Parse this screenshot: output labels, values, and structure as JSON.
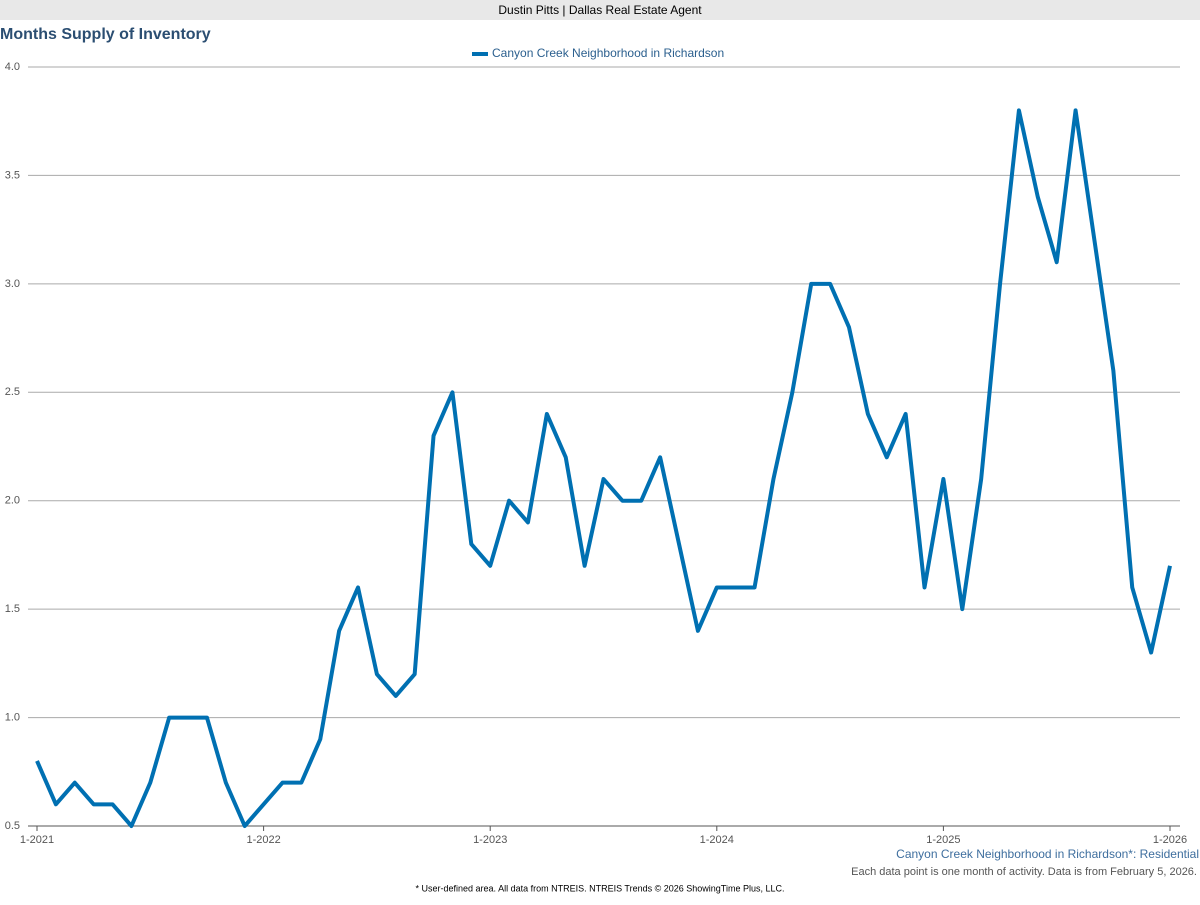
{
  "header": "Dustin Pitts | Dallas Real Estate Agent",
  "chart_data": {
    "type": "line",
    "title": "Months Supply of Inventory",
    "categories": [
      "1-2021",
      null,
      null,
      null,
      null,
      null,
      null,
      null,
      null,
      null,
      null,
      null,
      "1-2022",
      null,
      null,
      null,
      null,
      null,
      null,
      null,
      null,
      null,
      null,
      null,
      "1-2023",
      null,
      null,
      null,
      null,
      null,
      null,
      null,
      null,
      null,
      null,
      null,
      "1-2024",
      null,
      null,
      null,
      null,
      null,
      null,
      null,
      null,
      null,
      null,
      null,
      "1-2025",
      null,
      null,
      null,
      null,
      null,
      null,
      null,
      null,
      null,
      null,
      null,
      "1-2026"
    ],
    "series": [
      {
        "name": "Canyon Creek Neighborhood in Richardson",
        "color": "#0070b2",
        "values": [
          0.8,
          0.6,
          0.7,
          0.6,
          0.6,
          0.5,
          0.7,
          1.0,
          1.0,
          1.0,
          0.7,
          0.5,
          0.6,
          0.7,
          0.7,
          0.9,
          1.4,
          1.6,
          1.2,
          1.1,
          1.2,
          2.3,
          2.5,
          1.8,
          1.7,
          2.0,
          1.9,
          2.4,
          2.2,
          1.7,
          2.1,
          2.0,
          2.0,
          2.2,
          1.8,
          1.4,
          1.6,
          1.6,
          1.6,
          2.1,
          2.5,
          3.0,
          3.0,
          2.8,
          2.4,
          2.2,
          2.4,
          1.6,
          2.1,
          1.5,
          2.1,
          3.0,
          3.8,
          3.4,
          3.1,
          3.8,
          3.2,
          2.6,
          1.6,
          1.3,
          1.7
        ]
      }
    ],
    "ylim": [
      0.5,
      4.0
    ],
    "yticks": [
      0.5,
      {
        "value": 1,
        "label": "1.0"
      },
      1.5,
      {
        "value": 2,
        "label": "2.0"
      },
      2.5,
      {
        "value": 3,
        "label": "3.0"
      },
      3.5,
      {
        "value": 4,
        "label": "4.0"
      }
    ],
    "grid": true,
    "area_label": "Canyon Creek Neighborhood in Richardson*: Residential",
    "note": "Each data point is one month of activity. Data is from February 5, 2026.",
    "footnote": "* User-defined area. All data from NTREIS. NTREIS Trends © 2026 ShowingTime Plus, LLC."
  }
}
